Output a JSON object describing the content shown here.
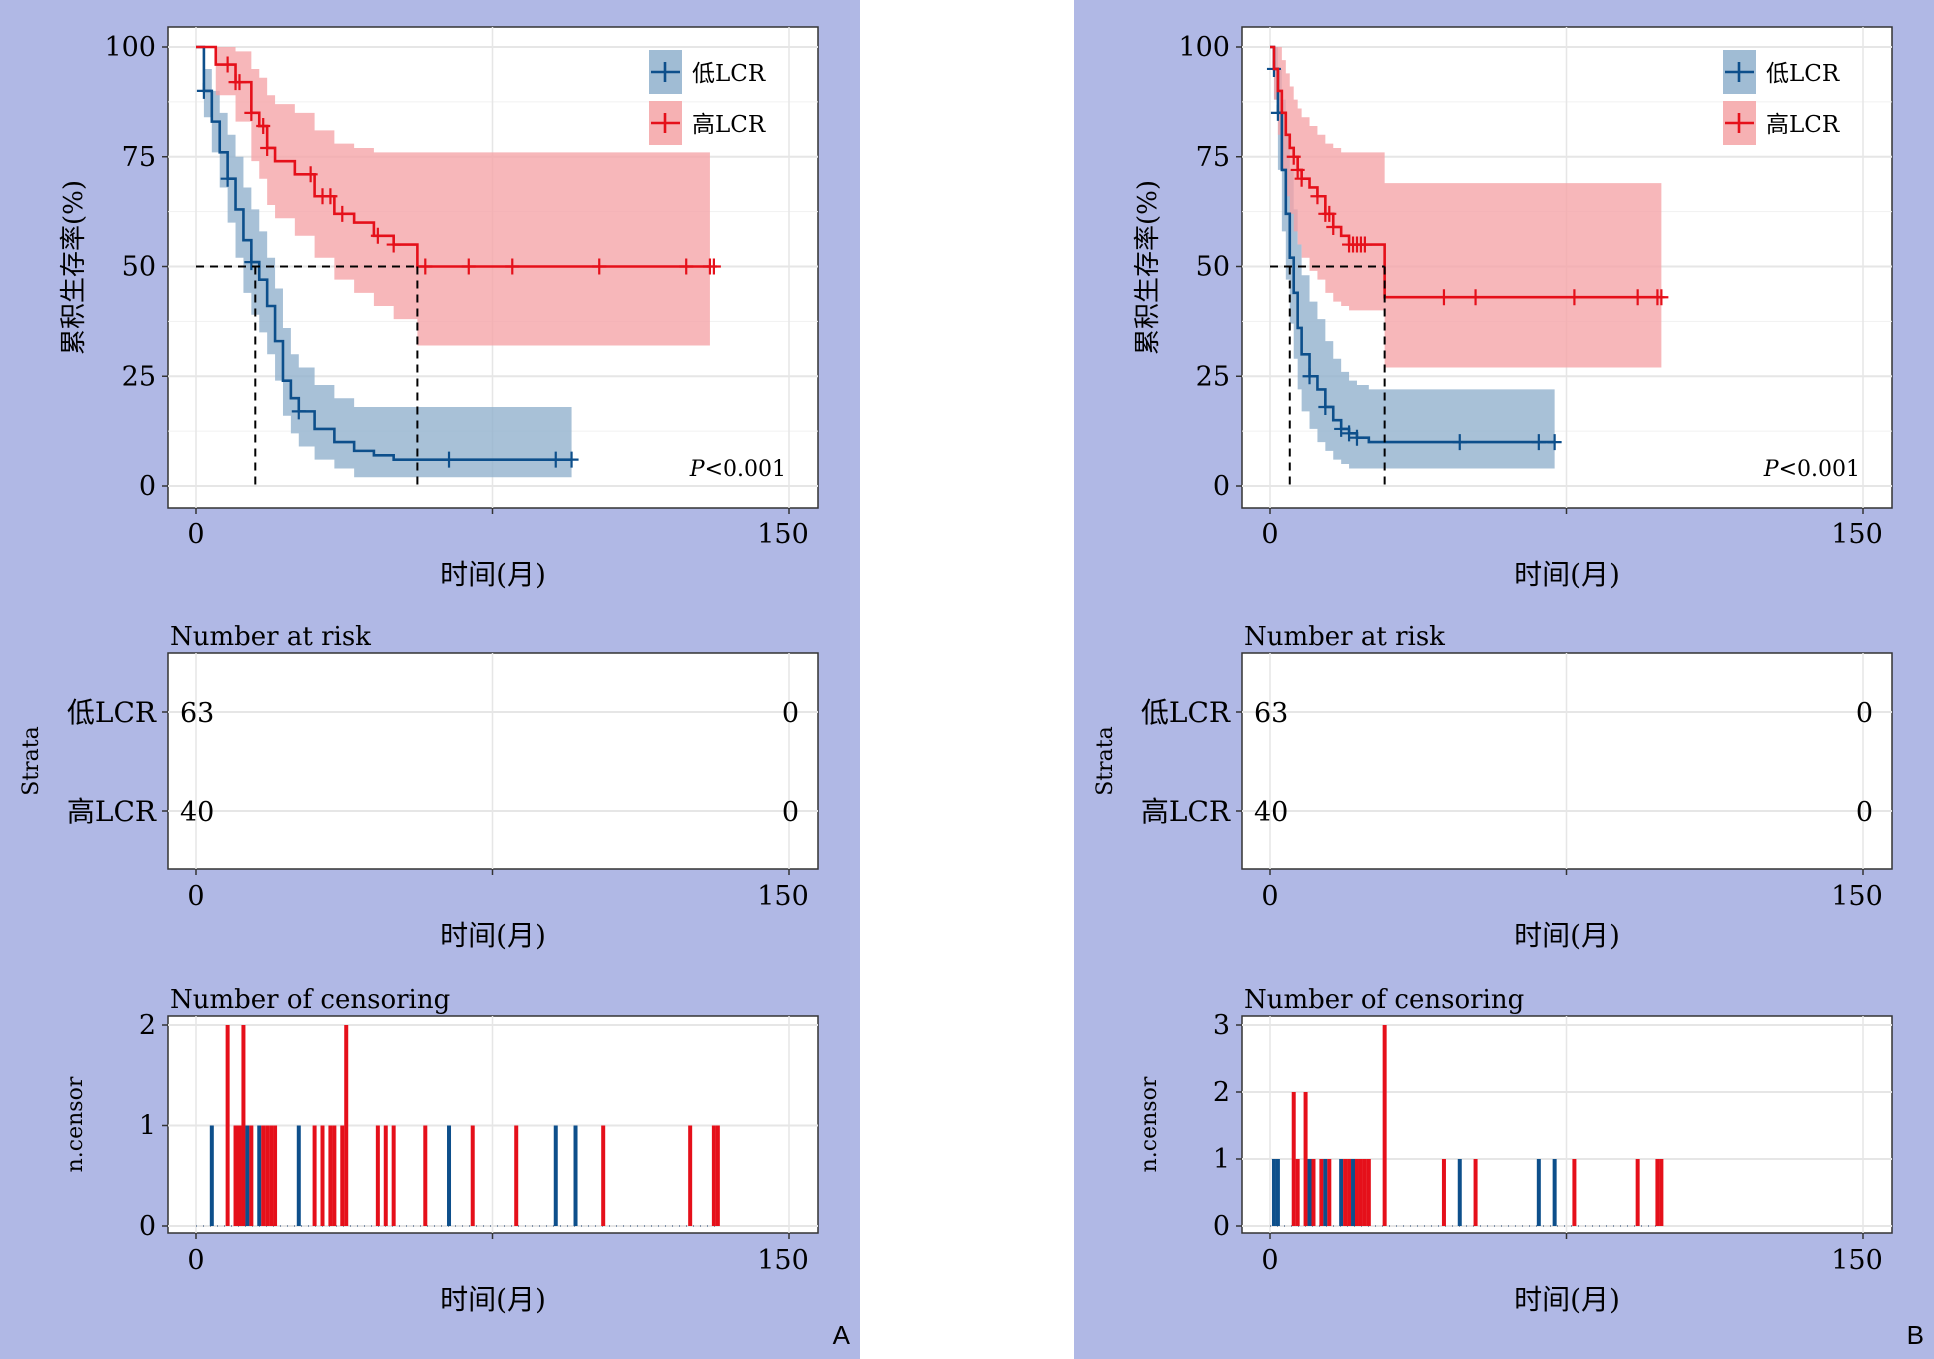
{
  "colors": {
    "low": "#0d4f8b",
    "low_band": "#8fb0cc",
    "high": "#e5101a",
    "high_band": "#f5a3a6",
    "background": "#b0b8e5",
    "grid": "#e6e6e6"
  },
  "chart_data": [
    {
      "type": "line",
      "panel_label": "A",
      "ylabel": "累积生存率(%)",
      "xlabel": "时间(月)",
      "xlim": [
        0,
        150
      ],
      "ylim": [
        0,
        100
      ],
      "xticks": [
        "0",
        "150"
      ],
      "yticks": [
        "0",
        "25",
        "50",
        "75",
        "100"
      ],
      "legend_position": "top-right",
      "pvalue_italic": "P",
      "pvalue_rest": "<0.001",
      "series": [
        {
          "name": "低LCR",
          "color_key": "low",
          "x": [
            0,
            2,
            4,
            6,
            8,
            10,
            12,
            14,
            16,
            18,
            20,
            22,
            24,
            26,
            30,
            35,
            40,
            45,
            50,
            55,
            60,
            95
          ],
          "y": [
            100,
            90,
            83,
            76,
            70,
            63,
            56,
            51,
            47,
            41,
            33,
            24,
            20,
            17,
            13,
            10,
            8,
            7,
            6,
            6,
            6,
            6
          ],
          "upper": [
            100,
            95,
            90,
            85,
            80,
            75,
            68,
            63,
            58,
            52,
            45,
            36,
            30,
            27,
            23,
            20,
            18,
            18,
            18,
            18,
            18,
            18
          ],
          "lower": [
            100,
            84,
            76,
            68,
            60,
            52,
            44,
            39,
            35,
            30,
            24,
            16,
            12,
            9,
            6,
            4,
            2,
            2,
            2,
            2,
            2,
            2
          ],
          "censor_x": [
            2,
            8,
            14,
            26,
            64,
            91,
            95
          ],
          "median_x": 15
        },
        {
          "name": "高LCR",
          "color_key": "high",
          "x": [
            0,
            5,
            10,
            14,
            16,
            18,
            20,
            25,
            30,
            35,
            40,
            45,
            50,
            56,
            130
          ],
          "y": [
            100,
            96,
            92,
            85,
            82,
            77,
            74,
            71,
            66,
            62,
            60,
            57,
            55,
            50,
            50
          ],
          "upper": [
            100,
            100,
            99,
            95,
            93,
            89,
            87,
            85,
            81,
            78,
            77,
            76,
            76,
            76,
            76
          ],
          "lower": [
            100,
            89,
            83,
            74,
            70,
            64,
            61,
            57,
            52,
            47,
            44,
            41,
            38,
            32,
            32
          ],
          "censor_x": [
            8,
            10,
            11,
            14,
            17,
            18,
            29,
            32,
            34,
            37,
            46,
            50,
            58,
            69,
            80,
            102,
            124,
            130,
            131
          ],
          "median_x": 56
        }
      ],
      "risk_table": {
        "title": "Number at risk",
        "strata_label": "Strata",
        "xlabel": "时间(月)",
        "xticks": [
          "0",
          "150"
        ],
        "rows": [
          {
            "name": "低LCR",
            "color_key": "low",
            "values": [
              "63",
              "0"
            ]
          },
          {
            "name": "高LCR",
            "color_key": "high",
            "values": [
              "40",
              "0"
            ]
          }
        ]
      },
      "censor_plot": {
        "title": "Number of censoring",
        "ylabel": "n.censor",
        "xlabel": "时间(月)",
        "xticks": [
          "0",
          "150"
        ],
        "ylim": [
          0,
          2
        ],
        "yticks": [
          "0",
          "1",
          "2"
        ],
        "bars": [
          {
            "x": 4,
            "n": 1,
            "color_key": "low"
          },
          {
            "x": 8,
            "n": 2,
            "color_key": "high"
          },
          {
            "x": 10,
            "n": 1,
            "color_key": "high"
          },
          {
            "x": 11,
            "n": 1,
            "color_key": "high"
          },
          {
            "x": 12,
            "n": 2,
            "color_key": "high"
          },
          {
            "x": 13,
            "n": 1,
            "color_key": "low"
          },
          {
            "x": 14,
            "n": 1,
            "color_key": "high"
          },
          {
            "x": 16,
            "n": 1,
            "color_key": "low"
          },
          {
            "x": 17,
            "n": 1,
            "color_key": "high"
          },
          {
            "x": 18,
            "n": 1,
            "color_key": "high"
          },
          {
            "x": 19,
            "n": 1,
            "color_key": "high"
          },
          {
            "x": 20,
            "n": 1,
            "color_key": "high"
          },
          {
            "x": 26,
            "n": 1,
            "color_key": "low"
          },
          {
            "x": 30,
            "n": 1,
            "color_key": "high"
          },
          {
            "x": 32,
            "n": 1,
            "color_key": "high"
          },
          {
            "x": 34,
            "n": 1,
            "color_key": "high"
          },
          {
            "x": 35,
            "n": 1,
            "color_key": "high"
          },
          {
            "x": 37,
            "n": 1,
            "color_key": "high"
          },
          {
            "x": 38,
            "n": 2,
            "color_key": "high"
          },
          {
            "x": 46,
            "n": 1,
            "color_key": "high"
          },
          {
            "x": 48,
            "n": 1,
            "color_key": "high"
          },
          {
            "x": 50,
            "n": 1,
            "color_key": "high"
          },
          {
            "x": 58,
            "n": 1,
            "color_key": "high"
          },
          {
            "x": 64,
            "n": 1,
            "color_key": "low"
          },
          {
            "x": 70,
            "n": 1,
            "color_key": "high"
          },
          {
            "x": 81,
            "n": 1,
            "color_key": "high"
          },
          {
            "x": 91,
            "n": 1,
            "color_key": "low"
          },
          {
            "x": 96,
            "n": 1,
            "color_key": "low"
          },
          {
            "x": 103,
            "n": 1,
            "color_key": "high"
          },
          {
            "x": 125,
            "n": 1,
            "color_key": "high"
          },
          {
            "x": 131,
            "n": 1,
            "color_key": "high"
          },
          {
            "x": 132,
            "n": 1,
            "color_key": "high"
          }
        ]
      }
    },
    {
      "type": "line",
      "panel_label": "B",
      "ylabel": "累积生存率(%)",
      "xlabel": "时间(月)",
      "xlim": [
        0,
        150
      ],
      "ylim": [
        0,
        100
      ],
      "xticks": [
        "0",
        "150"
      ],
      "yticks": [
        "0",
        "25",
        "50",
        "75",
        "100"
      ],
      "legend_position": "top-right",
      "pvalue_italic": "P",
      "pvalue_rest": "<0.001",
      "series": [
        {
          "name": "低LCR",
          "color_key": "low",
          "x": [
            0,
            1,
            2,
            3,
            4,
            5,
            6,
            7,
            8,
            10,
            12,
            14,
            16,
            18,
            20,
            22,
            25,
            30,
            72
          ],
          "y": [
            100,
            95,
            85,
            72,
            62,
            52,
            44,
            36,
            30,
            25,
            22,
            18,
            15,
            13,
            12,
            11,
            10,
            10,
            10
          ],
          "upper": [
            100,
            100,
            95,
            88,
            80,
            72,
            63,
            55,
            48,
            42,
            38,
            33,
            29,
            26,
            24,
            23,
            22,
            22,
            22
          ],
          "lower": [
            100,
            88,
            72,
            58,
            47,
            37,
            29,
            22,
            17,
            13,
            10,
            8,
            6,
            5,
            4,
            4,
            4,
            4,
            4
          ],
          "censor_x": [
            1,
            2,
            10,
            14,
            18,
            20,
            22,
            48,
            68,
            72
          ],
          "median_x": 5
        },
        {
          "name": "高LCR",
          "color_key": "high",
          "x": [
            0,
            1,
            2,
            3,
            4,
            5,
            6,
            7,
            8,
            10,
            12,
            14,
            16,
            18,
            20,
            22,
            25,
            29,
            99
          ],
          "y": [
            100,
            95,
            90,
            85,
            80,
            77,
            75,
            72,
            70,
            68,
            66,
            62,
            59,
            57,
            55,
            55,
            55,
            43,
            43
          ],
          "upper": [
            100,
            100,
            100,
            97,
            94,
            91,
            88,
            86,
            84,
            82,
            80,
            78,
            77,
            76,
            76,
            76,
            76,
            69,
            69
          ],
          "lower": [
            100,
            88,
            80,
            72,
            66,
            62,
            58,
            55,
            52,
            49,
            47,
            44,
            42,
            41,
            40,
            40,
            40,
            27,
            27
          ],
          "censor_x": [
            6,
            7,
            8,
            12,
            14,
            15,
            16,
            20,
            21,
            22,
            23,
            24,
            44,
            52,
            77,
            93,
            98,
            99
          ],
          "median_x": 29
        }
      ],
      "risk_table": {
        "title": "Number at risk",
        "strata_label": "Strata",
        "xlabel": "时间(月)",
        "xticks": [
          "0",
          "150"
        ],
        "rows": [
          {
            "name": "低LCR",
            "color_key": "low",
            "values": [
              "63",
              "0"
            ]
          },
          {
            "name": "高LCR",
            "color_key": "high",
            "values": [
              "40",
              "0"
            ]
          }
        ]
      },
      "censor_plot": {
        "title": "Number of censoring",
        "ylabel": "n.censor",
        "xlabel": "时间(月)",
        "xticks": [
          "0",
          "150"
        ],
        "ylim": [
          0,
          3
        ],
        "yticks": [
          "0",
          "1",
          "2",
          "3"
        ],
        "bars": [
          {
            "x": 1,
            "n": 1,
            "color_key": "low"
          },
          {
            "x": 2,
            "n": 1,
            "color_key": "low"
          },
          {
            "x": 6,
            "n": 2,
            "color_key": "high"
          },
          {
            "x": 7,
            "n": 1,
            "color_key": "high"
          },
          {
            "x": 9,
            "n": 2,
            "color_key": "high"
          },
          {
            "x": 10,
            "n": 1,
            "color_key": "low"
          },
          {
            "x": 11,
            "n": 1,
            "color_key": "high"
          },
          {
            "x": 13,
            "n": 1,
            "color_key": "high"
          },
          {
            "x": 14,
            "n": 1,
            "color_key": "low"
          },
          {
            "x": 15,
            "n": 1,
            "color_key": "high"
          },
          {
            "x": 18,
            "n": 1,
            "color_key": "low"
          },
          {
            "x": 19,
            "n": 1,
            "color_key": "high"
          },
          {
            "x": 20,
            "n": 1,
            "color_key": "high"
          },
          {
            "x": 21,
            "n": 1,
            "color_key": "low"
          },
          {
            "x": 22,
            "n": 1,
            "color_key": "high"
          },
          {
            "x": 23,
            "n": 1,
            "color_key": "high"
          },
          {
            "x": 24,
            "n": 1,
            "color_key": "high"
          },
          {
            "x": 25,
            "n": 1,
            "color_key": "high"
          },
          {
            "x": 29,
            "n": 3,
            "color_key": "high"
          },
          {
            "x": 44,
            "n": 1,
            "color_key": "high"
          },
          {
            "x": 48,
            "n": 1,
            "color_key": "low"
          },
          {
            "x": 52,
            "n": 1,
            "color_key": "high"
          },
          {
            "x": 68,
            "n": 1,
            "color_key": "low"
          },
          {
            "x": 72,
            "n": 1,
            "color_key": "low"
          },
          {
            "x": 77,
            "n": 1,
            "color_key": "high"
          },
          {
            "x": 93,
            "n": 1,
            "color_key": "high"
          },
          {
            "x": 98,
            "n": 1,
            "color_key": "high"
          },
          {
            "x": 99,
            "n": 1,
            "color_key": "high"
          }
        ]
      }
    }
  ]
}
